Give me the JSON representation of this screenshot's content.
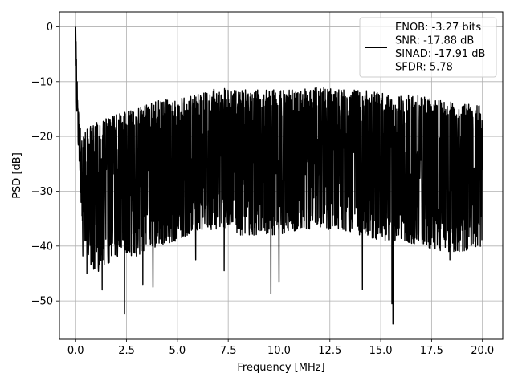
{
  "chart_data": {
    "type": "line",
    "xlabel": "Frequency [MHz]",
    "ylabel": "PSD [dB]",
    "xlim": [
      -0.8,
      21.0
    ],
    "ylim": [
      -57.0,
      2.7
    ],
    "xticks": [
      0.0,
      2.5,
      5.0,
      7.5,
      10.0,
      12.5,
      15.0,
      17.5,
      20.0
    ],
    "xtick_labels": [
      "0.0",
      "2.5",
      "5.0",
      "7.5",
      "10.0",
      "12.5",
      "15.0",
      "17.5",
      "20.0"
    ],
    "yticks": [
      0,
      -10,
      -20,
      -30,
      -40,
      -50
    ],
    "ytick_labels": [
      "0",
      "−10",
      "−20",
      "−30",
      "−40",
      "−50"
    ],
    "grid": true,
    "legend_position": "top-right",
    "legend": {
      "lines": [
        "ENOB: -3.27 bits",
        "SNR: -17.88 dB",
        "SINAD: -17.91 dB",
        "SFDR: 5.78"
      ]
    },
    "series": [
      {
        "color": "#000000",
        "envelope": {
          "x": [
            0.0,
            0.05,
            0.1,
            0.2,
            0.3,
            0.5,
            1.0,
            2.0,
            3.0,
            4.0,
            5.0,
            6.0,
            7.0,
            8.0,
            9.0,
            10.0,
            11.0,
            12.0,
            13.0,
            14.0,
            15.0,
            16.0,
            17.0,
            18.0,
            19.0,
            20.0
          ],
          "max": [
            0.0,
            -6.0,
            -14.0,
            -17.5,
            -19.5,
            -18.5,
            -17.5,
            -16.0,
            -15.0,
            -13.5,
            -13.0,
            -12.0,
            -11.0,
            -11.5,
            -11.5,
            -11.5,
            -11.5,
            -11.0,
            -11.5,
            -11.5,
            -12.0,
            -12.0,
            -12.5,
            -13.5,
            -14.0,
            -14.5
          ],
          "min": [
            0.0,
            -16.0,
            -20.0,
            -27.0,
            -36.0,
            -42.0,
            -45.0,
            -42.0,
            -42.0,
            -40.0,
            -39.0,
            -37.0,
            -37.0,
            -38.0,
            -38.0,
            -38.0,
            -37.0,
            -37.0,
            -37.0,
            -38.0,
            -39.0,
            -39.0,
            -40.0,
            -41.0,
            -41.0,
            -40.0
          ]
        },
        "dips": [
          {
            "x": 0.35,
            "y": -41.8
          },
          {
            "x": 0.55,
            "y": -45.0
          },
          {
            "x": 1.3,
            "y": -48.0
          },
          {
            "x": 2.4,
            "y": -52.4
          },
          {
            "x": 3.3,
            "y": -47.0
          },
          {
            "x": 3.8,
            "y": -47.5
          },
          {
            "x": 5.9,
            "y": -42.5
          },
          {
            "x": 7.3,
            "y": -44.5
          },
          {
            "x": 9.6,
            "y": -48.7
          },
          {
            "x": 10.0,
            "y": -46.6
          },
          {
            "x": 14.1,
            "y": -47.9
          },
          {
            "x": 15.55,
            "y": -50.5
          },
          {
            "x": 15.6,
            "y": -54.2
          },
          {
            "x": 18.4,
            "y": -42.5
          }
        ]
      }
    ]
  }
}
